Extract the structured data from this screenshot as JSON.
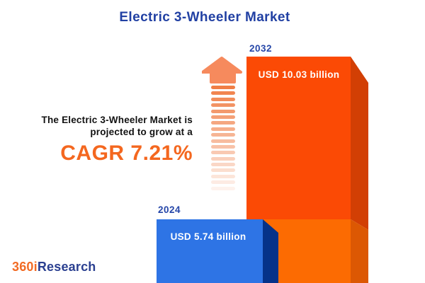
{
  "title": "Electric 3-Wheeler Market",
  "annotation": {
    "line1": "The Electric 3-Wheeler Market is",
    "line2": "projected to grow at a",
    "cagr": "CAGR 7.21%"
  },
  "bars": {
    "y2024": {
      "year": "2024",
      "value_label": "USD 5.74 billion"
    },
    "y2032": {
      "year": "2032",
      "value_label": "USD 10.03 billion"
    }
  },
  "logo": {
    "prefix": "360i",
    "suffix": "Research"
  },
  "colors": {
    "title_blue": "#2140A3",
    "annotation_text": "#121212",
    "cagr_orange": "#F4671F",
    "bar_2024_front": "#2E74E5",
    "bar_2024_side": "#053289",
    "bar_2032_front_top": "#FB4A05",
    "bar_2032_front_bottom": "#FC6B02",
    "bar_2032_side_top": "#D23F04",
    "bar_2032_side_bottom": "#DC5803",
    "arrow_head_orange": "#F68A5D",
    "arrow_stripe_orange": "#F07E46",
    "logo_orange": "#F26B24",
    "logo_blue": "#2A3F90",
    "year_label_blue": "#2546A8",
    "value_label_white": "#FFFFFF"
  },
  "chart_data": {
    "type": "bar",
    "title": "Electric 3-Wheeler Market",
    "categories": [
      "2024",
      "2032"
    ],
    "values": [
      5.74,
      10.03
    ],
    "unit": "USD billion",
    "value_labels": [
      "USD 5.74 billion",
      "USD 10.03 billion"
    ],
    "annotations": [
      "The Electric 3-Wheeler Market is projected to grow at a",
      "CAGR 7.21%"
    ],
    "cagr_percent": 7.21,
    "legend": "off",
    "grid": "off",
    "orientation": "vertical",
    "style": "3d-extruded-infographic"
  }
}
